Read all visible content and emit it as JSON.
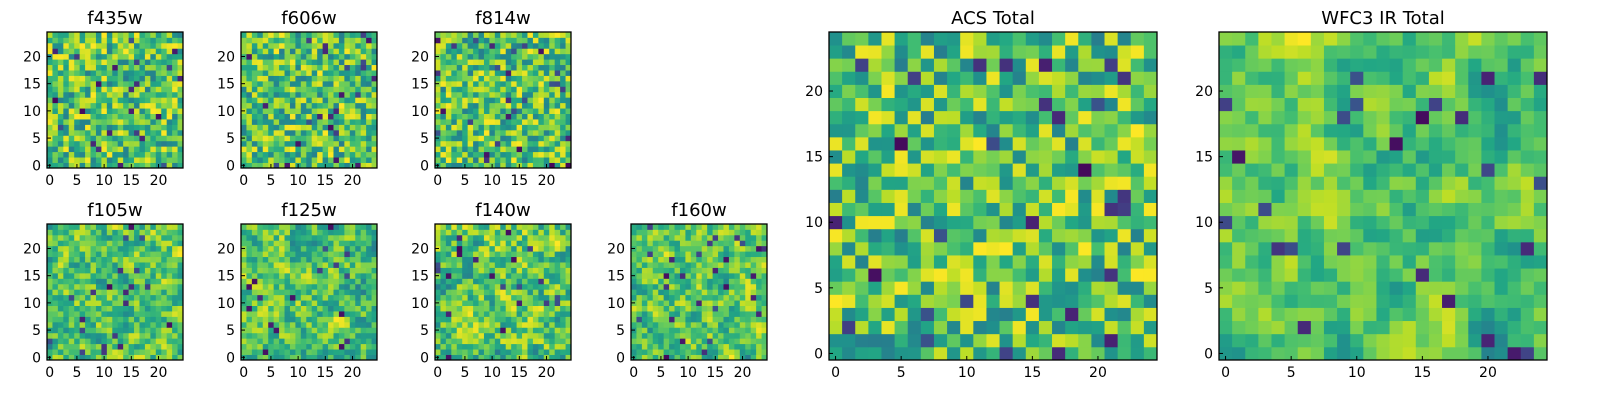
{
  "chart_data": [
    {
      "type": "heatmap",
      "title": "f435w",
      "xticks": [
        0,
        5,
        10,
        15,
        20
      ],
      "yticks": [
        0,
        5,
        10,
        15,
        20
      ],
      "grid_size": [
        25,
        25
      ],
      "colormap": "viridis",
      "seed": 11,
      "smooth": 0
    },
    {
      "type": "heatmap",
      "title": "f606w",
      "xticks": [
        0,
        5,
        10,
        15,
        20
      ],
      "yticks": [
        0,
        5,
        10,
        15,
        20
      ],
      "grid_size": [
        25,
        25
      ],
      "colormap": "viridis",
      "seed": 23,
      "smooth": 0
    },
    {
      "type": "heatmap",
      "title": "f814w",
      "xticks": [
        0,
        5,
        10,
        15,
        20
      ],
      "yticks": [
        0,
        5,
        10,
        15,
        20
      ],
      "grid_size": [
        25,
        25
      ],
      "colormap": "viridis",
      "seed": 37,
      "smooth": 0
    },
    {
      "type": "heatmap",
      "title": "f105w",
      "xticks": [
        0,
        5,
        10,
        15,
        20
      ],
      "yticks": [
        0,
        5,
        10,
        15,
        20
      ],
      "grid_size": [
        25,
        25
      ],
      "colormap": "viridis",
      "seed": 41,
      "smooth": 1
    },
    {
      "type": "heatmap",
      "title": "f125w",
      "xticks": [
        0,
        5,
        10,
        15,
        20
      ],
      "yticks": [
        0,
        5,
        10,
        15,
        20
      ],
      "grid_size": [
        25,
        25
      ],
      "colormap": "viridis",
      "seed": 53,
      "smooth": 1
    },
    {
      "type": "heatmap",
      "title": "f140w",
      "xticks": [
        0,
        5,
        10,
        15,
        20
      ],
      "yticks": [
        0,
        5,
        10,
        15,
        20
      ],
      "grid_size": [
        25,
        25
      ],
      "colormap": "viridis",
      "seed": 67,
      "smooth": 1
    },
    {
      "type": "heatmap",
      "title": "f160w",
      "xticks": [
        0,
        5,
        10,
        15,
        20
      ],
      "yticks": [
        0,
        5,
        10,
        15,
        20
      ],
      "grid_size": [
        25,
        25
      ],
      "colormap": "viridis",
      "seed": 79,
      "smooth": 1
    },
    {
      "type": "heatmap",
      "title": "ACS Total",
      "xticks": [
        0,
        5,
        10,
        15,
        20
      ],
      "yticks": [
        0,
        5,
        10,
        15,
        20
      ],
      "grid_size": [
        25,
        25
      ],
      "colormap": "viridis",
      "seed": 97,
      "smooth": 0
    },
    {
      "type": "heatmap",
      "title": "WFC3 IR Total",
      "xticks": [
        0,
        5,
        10,
        15,
        20
      ],
      "yticks": [
        0,
        5,
        10,
        15,
        20
      ],
      "grid_size": [
        25,
        25
      ],
      "colormap": "viridis",
      "seed": 131,
      "smooth": 2
    }
  ]
}
